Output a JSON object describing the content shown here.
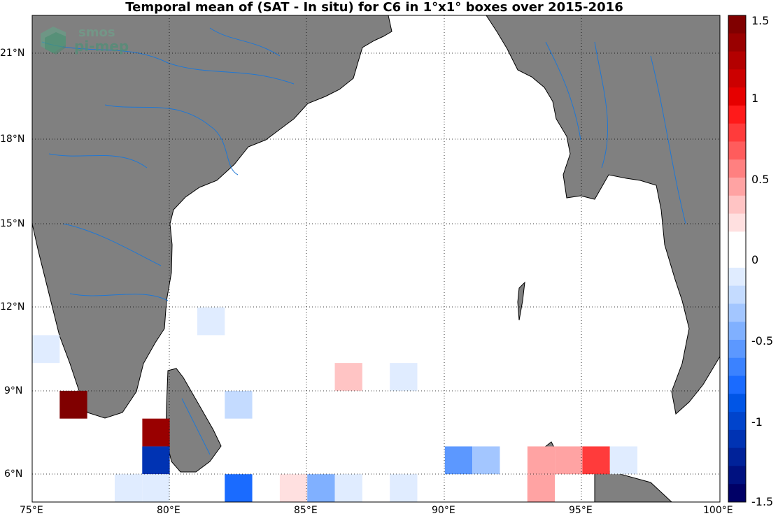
{
  "title": "Temporal mean of (SAT - In situ) for C6 in 1°x1° boxes over 2015-2016",
  "logo": {
    "line1": "smos",
    "line2": "pi-mep"
  },
  "lon_ticks": [
    "75°E",
    "80°E",
    "85°E",
    "90°E",
    "95°E",
    "100°E"
  ],
  "lat_ticks": [
    "6°N",
    "9°N",
    "12°N",
    "15°N",
    "18°N",
    "21°N"
  ],
  "colorbar": {
    "ticks": [
      "1.5",
      "1",
      "0.5",
      "0",
      "-0.5",
      "-1",
      "-1.5"
    ],
    "colors": [
      "#800000",
      "#990000",
      "#b30000",
      "#cc0000",
      "#e60000",
      "#ff1a1a",
      "#ff3b3b",
      "#ff5c5c",
      "#ff8080",
      "#ffa3a3",
      "#ffc4c4",
      "#ffe0e0",
      "#ffffff",
      "#ffffff",
      "#e0ecff",
      "#c4dbff",
      "#a3c6ff",
      "#80b0ff",
      "#5c98ff",
      "#3b82ff",
      "#1a6bff",
      "#0055e6",
      "#0044cc",
      "#0033b3",
      "#002299",
      "#001180",
      "#000066"
    ]
  },
  "colors": {
    "land": "#808080",
    "river": "#1f77d4",
    "grid": "#000000",
    "ocean": "#ffffff"
  },
  "cells": [
    {
      "lon": 76,
      "lat": 8,
      "value": 1.45
    },
    {
      "lon": 79,
      "lat": 7,
      "value": 1.3
    },
    {
      "lon": 95,
      "lat": 6,
      "value": 0.8
    },
    {
      "lon": 93,
      "lat": 6,
      "value": 0.45
    },
    {
      "lon": 94,
      "lat": 6,
      "value": 0.45
    },
    {
      "lon": 93,
      "lat": 5,
      "value": 0.4
    },
    {
      "lon": 86,
      "lat": 9,
      "value": 0.35
    },
    {
      "lon": 84,
      "lat": 5,
      "value": 0.25
    },
    {
      "lon": 78,
      "lat": 7,
      "value": 0.15
    },
    {
      "lon": 81,
      "lat": 12,
      "value": 0.12
    },
    {
      "lon": 82,
      "lat": 12,
      "value": 0.12
    },
    {
      "lon": 82,
      "lat": 11,
      "value": 0.12
    },
    {
      "lon": 84,
      "lat": 11,
      "value": 0.12
    },
    {
      "lon": 85,
      "lat": 9,
      "value": 0.12
    },
    {
      "lon": 86,
      "lat": 8,
      "value": 0.12
    },
    {
      "lon": 88,
      "lat": 8,
      "value": 0.12
    },
    {
      "lon": 90,
      "lat": 8,
      "value": 0.12
    },
    {
      "lon": 92,
      "lat": 7,
      "value": 0.12
    },
    {
      "lon": 92,
      "lat": 6,
      "value": 0.12
    },
    {
      "lon": 88,
      "lat": 6,
      "value": 0.12
    },
    {
      "lon": 89,
      "lat": 6,
      "value": 0.12
    },
    {
      "lon": 81,
      "lat": 5,
      "value": 0.12
    },
    {
      "lon": 79,
      "lat": 6,
      "value": -1.1
    },
    {
      "lon": 82,
      "lat": 5,
      "value": -0.8
    },
    {
      "lon": 90,
      "lat": 6,
      "value": -0.5
    },
    {
      "lon": 85,
      "lat": 5,
      "value": -0.4
    },
    {
      "lon": 91,
      "lat": 6,
      "value": -0.3
    },
    {
      "lon": 82,
      "lat": 8,
      "value": -0.25
    },
    {
      "lon": 81,
      "lat": 11,
      "value": -0.15
    },
    {
      "lon": 75,
      "lat": 10,
      "value": -0.12
    },
    {
      "lon": 88,
      "lat": 9,
      "value": -0.12
    },
    {
      "lon": 86,
      "lat": 5,
      "value": -0.12
    },
    {
      "lon": 88,
      "lat": 5,
      "value": -0.12
    },
    {
      "lon": 78,
      "lat": 5,
      "value": -0.12
    },
    {
      "lon": 79,
      "lat": 5,
      "value": -0.12
    },
    {
      "lon": 96,
      "lat": 6,
      "value": -0.12
    }
  ]
}
